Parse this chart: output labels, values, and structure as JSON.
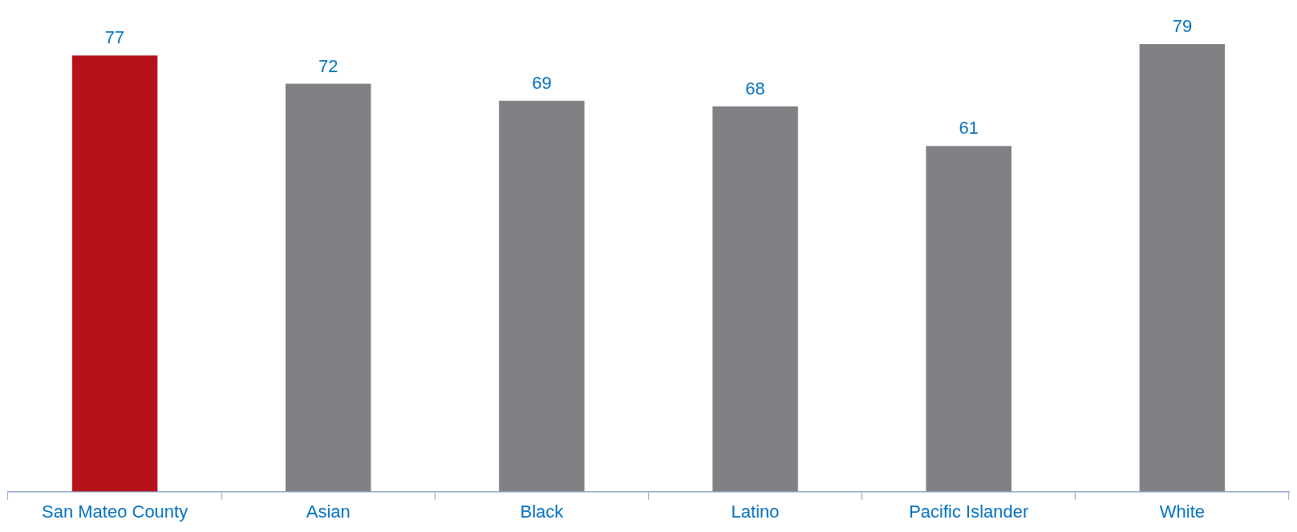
{
  "chart_data": {
    "type": "bar",
    "categories": [
      "San Mateo County",
      "Asian",
      "Black",
      "Latino",
      "Pacific Islander",
      "White"
    ],
    "values": [
      77,
      72,
      69,
      68,
      61,
      79
    ],
    "colors": [
      "#b5121b",
      "#808184",
      "#808184",
      "#808184",
      "#808184",
      "#808184"
    ],
    "data_labels": true,
    "legend": false
  }
}
